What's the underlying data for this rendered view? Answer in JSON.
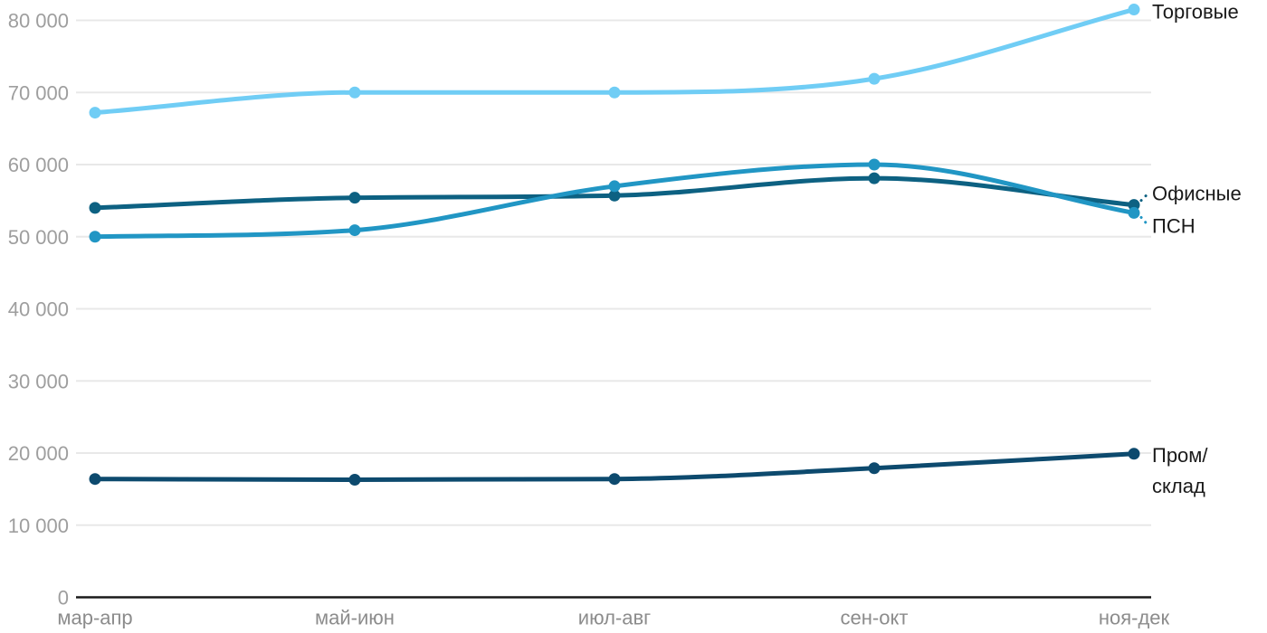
{
  "chart_data": {
    "type": "line",
    "title": "",
    "xlabel": "",
    "ylabel": "",
    "categories": [
      "мар-апр",
      "май-июн",
      "июл-авг",
      "сен-окт",
      "ноя-дек"
    ],
    "series": [
      {
        "name": "Торговые",
        "color": "#70CDF5",
        "values": [
          67200,
          70000,
          70000,
          71900,
          81500
        ],
        "label_lines": [
          "Торговые"
        ],
        "label_dy": 2,
        "leader": false
      },
      {
        "name": "Офисные",
        "color": "#0D6182",
        "values": [
          54000,
          55400,
          55700,
          58100,
          54400
        ],
        "label_lines": [
          "Офисные"
        ],
        "label_dy": -13,
        "leader": true
      },
      {
        "name": "ПСН",
        "color": "#2196C4",
        "values": [
          50000,
          50900,
          57000,
          60000,
          53300
        ],
        "label_lines": [
          "ПСН"
        ],
        "label_dy": 14,
        "leader": true
      },
      {
        "name": "Пром/склад",
        "color": "#0D4A6E",
        "values": [
          16400,
          16300,
          16400,
          17900,
          19900
        ],
        "label_lines": [
          "Пром/",
          "склад"
        ],
        "label_dy": 1,
        "leader": false
      }
    ],
    "ylim": [
      0,
      80000
    ],
    "yticks": [
      0,
      10000,
      20000,
      30000,
      40000,
      50000,
      60000,
      70000,
      80000
    ],
    "ytick_labels": [
      "0",
      "10 000",
      "20 000",
      "30 000",
      "40 000",
      "50 000",
      "60 000",
      "70 000",
      "80 000"
    ],
    "grid": true,
    "legend_position": "end-of-line-right",
    "colors": {
      "grid": "#E8E8E8",
      "axis": "#1A1A1A",
      "ytick_text": "#9E9E9E",
      "xtick_text": "#8C8C8C",
      "series_label_text": "#1A1A1A"
    }
  }
}
